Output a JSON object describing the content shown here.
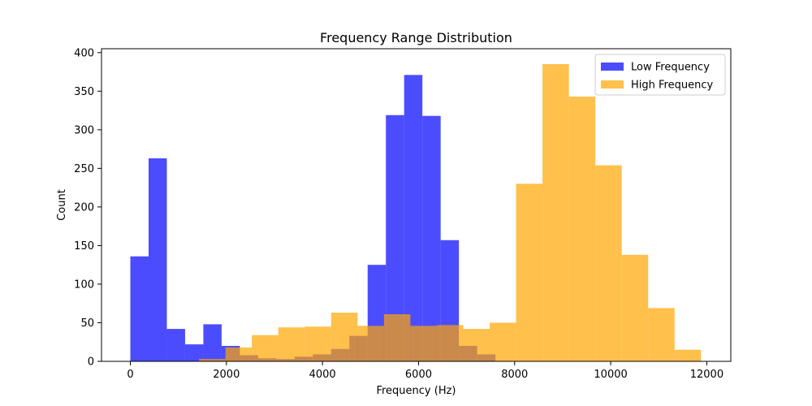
{
  "chart_data": {
    "type": "histogram",
    "title": "Frequency Range Distribution",
    "xlabel": "Frequency (Hz)",
    "ylabel": "Count",
    "xlim": [
      -600,
      12500
    ],
    "ylim": [
      0,
      405
    ],
    "xticks": [
      0,
      2000,
      4000,
      6000,
      8000,
      10000,
      12000
    ],
    "yticks": [
      0,
      50,
      100,
      150,
      200,
      250,
      300,
      350,
      400
    ],
    "grid": false,
    "legend_position": "top-right",
    "series": [
      {
        "name": "Low Frequency",
        "color": "#0000ff",
        "opacity": 0.7,
        "bins": [
          {
            "x0": 0,
            "x1": 380,
            "count": 136
          },
          {
            "x0": 380,
            "x1": 760,
            "count": 263
          },
          {
            "x0": 760,
            "x1": 1140,
            "count": 42
          },
          {
            "x0": 1140,
            "x1": 1520,
            "count": 22
          },
          {
            "x0": 1520,
            "x1": 1900,
            "count": 48
          },
          {
            "x0": 1900,
            "x1": 2280,
            "count": 20
          },
          {
            "x0": 2280,
            "x1": 2660,
            "count": 8
          },
          {
            "x0": 2660,
            "x1": 3040,
            "count": 4
          },
          {
            "x0": 3040,
            "x1": 3420,
            "count": 3
          },
          {
            "x0": 3420,
            "x1": 3800,
            "count": 6
          },
          {
            "x0": 3800,
            "x1": 4180,
            "count": 9
          },
          {
            "x0": 4180,
            "x1": 4560,
            "count": 16
          },
          {
            "x0": 4560,
            "x1": 4940,
            "count": 33
          },
          {
            "x0": 4940,
            "x1": 5320,
            "count": 125
          },
          {
            "x0": 5320,
            "x1": 5700,
            "count": 319
          },
          {
            "x0": 5700,
            "x1": 6080,
            "count": 371
          },
          {
            "x0": 6080,
            "x1": 6460,
            "count": 318
          },
          {
            "x0": 6460,
            "x1": 6840,
            "count": 157
          },
          {
            "x0": 6840,
            "x1": 7220,
            "count": 20
          },
          {
            "x0": 7220,
            "x1": 7600,
            "count": 9
          }
        ]
      },
      {
        "name": "High Frequency",
        "color": "#ffa500",
        "opacity": 0.7,
        "bins": [
          {
            "x0": 1430,
            "x1": 1980,
            "count": 3
          },
          {
            "x0": 1980,
            "x1": 2530,
            "count": 18
          },
          {
            "x0": 2530,
            "x1": 3080,
            "count": 34
          },
          {
            "x0": 3080,
            "x1": 3630,
            "count": 44
          },
          {
            "x0": 3630,
            "x1": 4180,
            "count": 45
          },
          {
            "x0": 4180,
            "x1": 4730,
            "count": 63
          },
          {
            "x0": 4730,
            "x1": 5280,
            "count": 46
          },
          {
            "x0": 5280,
            "x1": 5830,
            "count": 61
          },
          {
            "x0": 5830,
            "x1": 6380,
            "count": 46
          },
          {
            "x0": 6380,
            "x1": 6930,
            "count": 47
          },
          {
            "x0": 6930,
            "x1": 7480,
            "count": 42
          },
          {
            "x0": 7480,
            "x1": 8030,
            "count": 50
          },
          {
            "x0": 8030,
            "x1": 8580,
            "count": 230
          },
          {
            "x0": 8580,
            "x1": 9130,
            "count": 385
          },
          {
            "x0": 9130,
            "x1": 9680,
            "count": 343
          },
          {
            "x0": 9680,
            "x1": 10230,
            "count": 254
          },
          {
            "x0": 10230,
            "x1": 10780,
            "count": 138
          },
          {
            "x0": 10780,
            "x1": 11330,
            "count": 69
          },
          {
            "x0": 11330,
            "x1": 11880,
            "count": 15
          }
        ]
      }
    ]
  }
}
